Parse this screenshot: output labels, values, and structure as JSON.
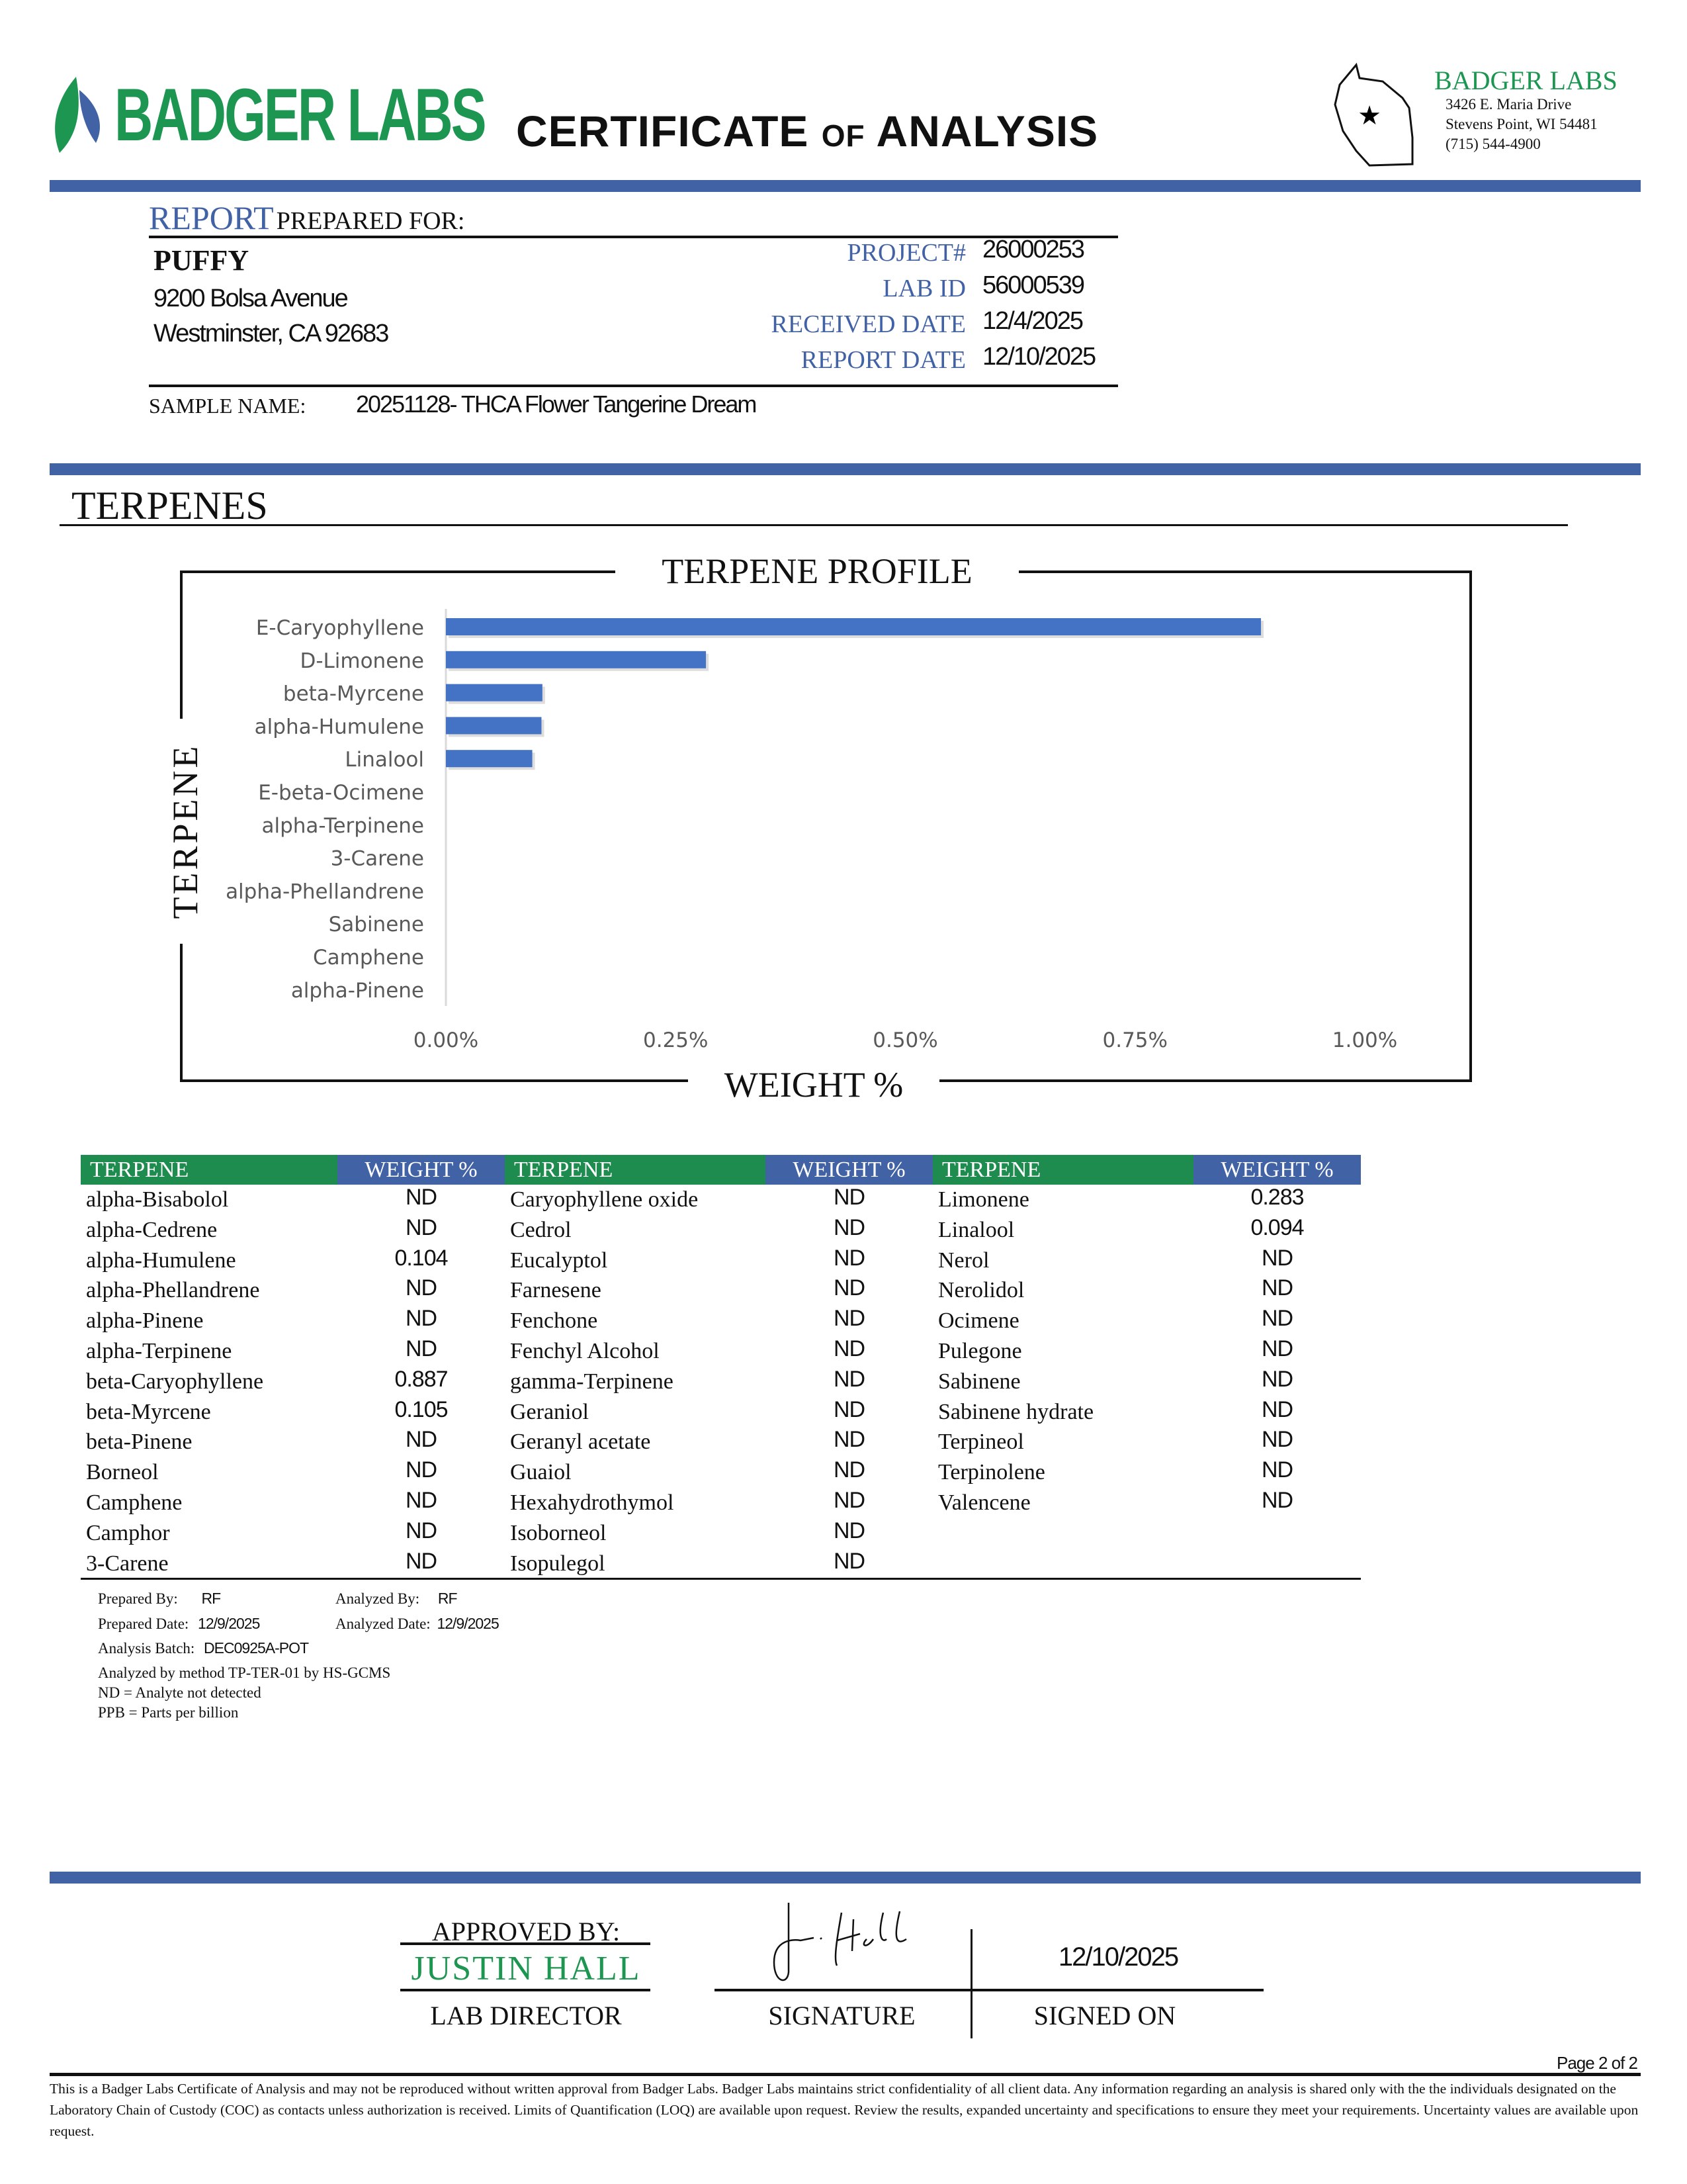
{
  "header": {
    "logo_text": "BADGER LABS",
    "title_main": "CERTIFICATE",
    "title_of": "OF",
    "title_end": "ANALYSIS",
    "lab_name": "BADGER LABS",
    "address1": "3426 E. Maria Drive",
    "address2": "Stevens Point, WI 54481",
    "phone": "(715) 544-4900",
    "brand_green": "#1c9651",
    "brand_blue": "#4262a6"
  },
  "report": {
    "report_word": "REPORT",
    "prepared_for": "PREPARED FOR:",
    "client": "PUFFY",
    "street": "9200 Bolsa Avenue",
    "city": "Westminster, CA 92683",
    "fields": [
      {
        "label": "PROJECT#",
        "value": "26000253"
      },
      {
        "label": "LAB ID",
        "value": "56000539"
      },
      {
        "label": "RECEIVED DATE",
        "value": "12/4/2025"
      },
      {
        "label": "REPORT DATE",
        "value": "12/10/2025"
      }
    ],
    "sample_label": "SAMPLE NAME:",
    "sample_name": "20251128- THCA Flower Tangerine Dream"
  },
  "section_title": "TERPENES",
  "chart_data": {
    "type": "bar",
    "orientation": "horizontal",
    "title": "TERPENE PROFILE",
    "xlabel": "WEIGHT %",
    "ylabel": "TERPENE",
    "categories": [
      "E-Caryophyllene",
      "D-Limonene",
      "beta-Myrcene",
      "alpha-Humulene",
      "Linalool",
      "E-beta-Ocimene",
      "alpha-Terpinene",
      "3-Carene",
      "alpha-Phellandrene",
      "Sabinene",
      "Camphene",
      "alpha-Pinene"
    ],
    "values": [
      0.887,
      0.283,
      0.105,
      0.104,
      0.094,
      0,
      0,
      0,
      0,
      0,
      0,
      0
    ],
    "xlim": [
      0,
      1.0
    ],
    "xticks": [
      "0.00%",
      "0.25%",
      "0.50%",
      "0.75%",
      "1.00%"
    ],
    "bar_color": "#4472c4",
    "grid": false
  },
  "table": {
    "headers": [
      "TERPENE",
      "WEIGHT %"
    ],
    "columns": [
      [
        [
          "alpha-Bisabolol",
          "ND"
        ],
        [
          "alpha-Cedrene",
          "ND"
        ],
        [
          "alpha-Humulene",
          "0.104"
        ],
        [
          "alpha-Phellandrene",
          "ND"
        ],
        [
          "alpha-Pinene",
          "ND"
        ],
        [
          "alpha-Terpinene",
          "ND"
        ],
        [
          "beta-Caryophyllene",
          "0.887"
        ],
        [
          "beta-Myrcene",
          "0.105"
        ],
        [
          "beta-Pinene",
          "ND"
        ],
        [
          "Borneol",
          "ND"
        ],
        [
          "Camphene",
          "ND"
        ],
        [
          "Camphor",
          "ND"
        ],
        [
          "3-Carene",
          "ND"
        ]
      ],
      [
        [
          "Caryophyllene oxide",
          "ND"
        ],
        [
          "Cedrol",
          "ND"
        ],
        [
          "Eucalyptol",
          "ND"
        ],
        [
          "Farnesene",
          "ND"
        ],
        [
          "Fenchone",
          "ND"
        ],
        [
          "Fenchyl Alcohol",
          "ND"
        ],
        [
          "gamma-Terpinene",
          "ND"
        ],
        [
          "Geraniol",
          "ND"
        ],
        [
          "Geranyl acetate",
          "ND"
        ],
        [
          "Guaiol",
          "ND"
        ],
        [
          "Hexahydrothymol",
          "ND"
        ],
        [
          "Isoborneol",
          "ND"
        ],
        [
          "Isopulegol",
          "ND"
        ]
      ],
      [
        [
          "Limonene",
          "0.283"
        ],
        [
          "Linalool",
          "0.094"
        ],
        [
          "Nerol",
          "ND"
        ],
        [
          "Nerolidol",
          "ND"
        ],
        [
          "Ocimene",
          "ND"
        ],
        [
          "Pulegone",
          "ND"
        ],
        [
          "Sabinene",
          "ND"
        ],
        [
          "Sabinene hydrate",
          "ND"
        ],
        [
          "Terpineol",
          "ND"
        ],
        [
          "Terpinolene",
          "ND"
        ],
        [
          "Valencene",
          "ND"
        ]
      ]
    ]
  },
  "notes": {
    "prepared_by_label": "Prepared By:",
    "prepared_by": "RF",
    "analyzed_by_label": "Analyzed By:",
    "analyzed_by": "RF",
    "prepared_date_label": "Prepared Date:",
    "prepared_date": "12/9/2025",
    "analyzed_date_label": "Analyzed Date:",
    "analyzed_date": "12/9/2025",
    "batch_label": "Analysis Batch:",
    "batch": "DEC0925A-POT",
    "method": "Analyzed by method TP-TER-01 by HS-GCMS",
    "nd": "ND = Analyte not detected",
    "ppb": "PPB = Parts per billion"
  },
  "approval": {
    "approved_by": "APPROVED BY:",
    "name": "JUSTIN HALL",
    "role": "LAB DIRECTOR",
    "signature_label": "SIGNATURE",
    "signed_on_label": "SIGNED ON",
    "signed_date": "12/10/2025",
    "signature_text": "J. Hall"
  },
  "footer": {
    "page": "Page 2 of 2",
    "disclaimer": "This is a Badger Labs Certificate of Analysis and may not be reproduced without written approval from Badger Labs. Badger Labs maintains strict confidentiality of all client data. Any information regarding an analysis is shared only with the the individuals designated on the Laboratory Chain of Custody (COC) as contacts unless authorization is received. Limits of Quantification (LOQ) are available upon request. Review the results, expanded uncertainty and specifications to ensure they meet your requirements. Uncertainty values are available upon request."
  }
}
